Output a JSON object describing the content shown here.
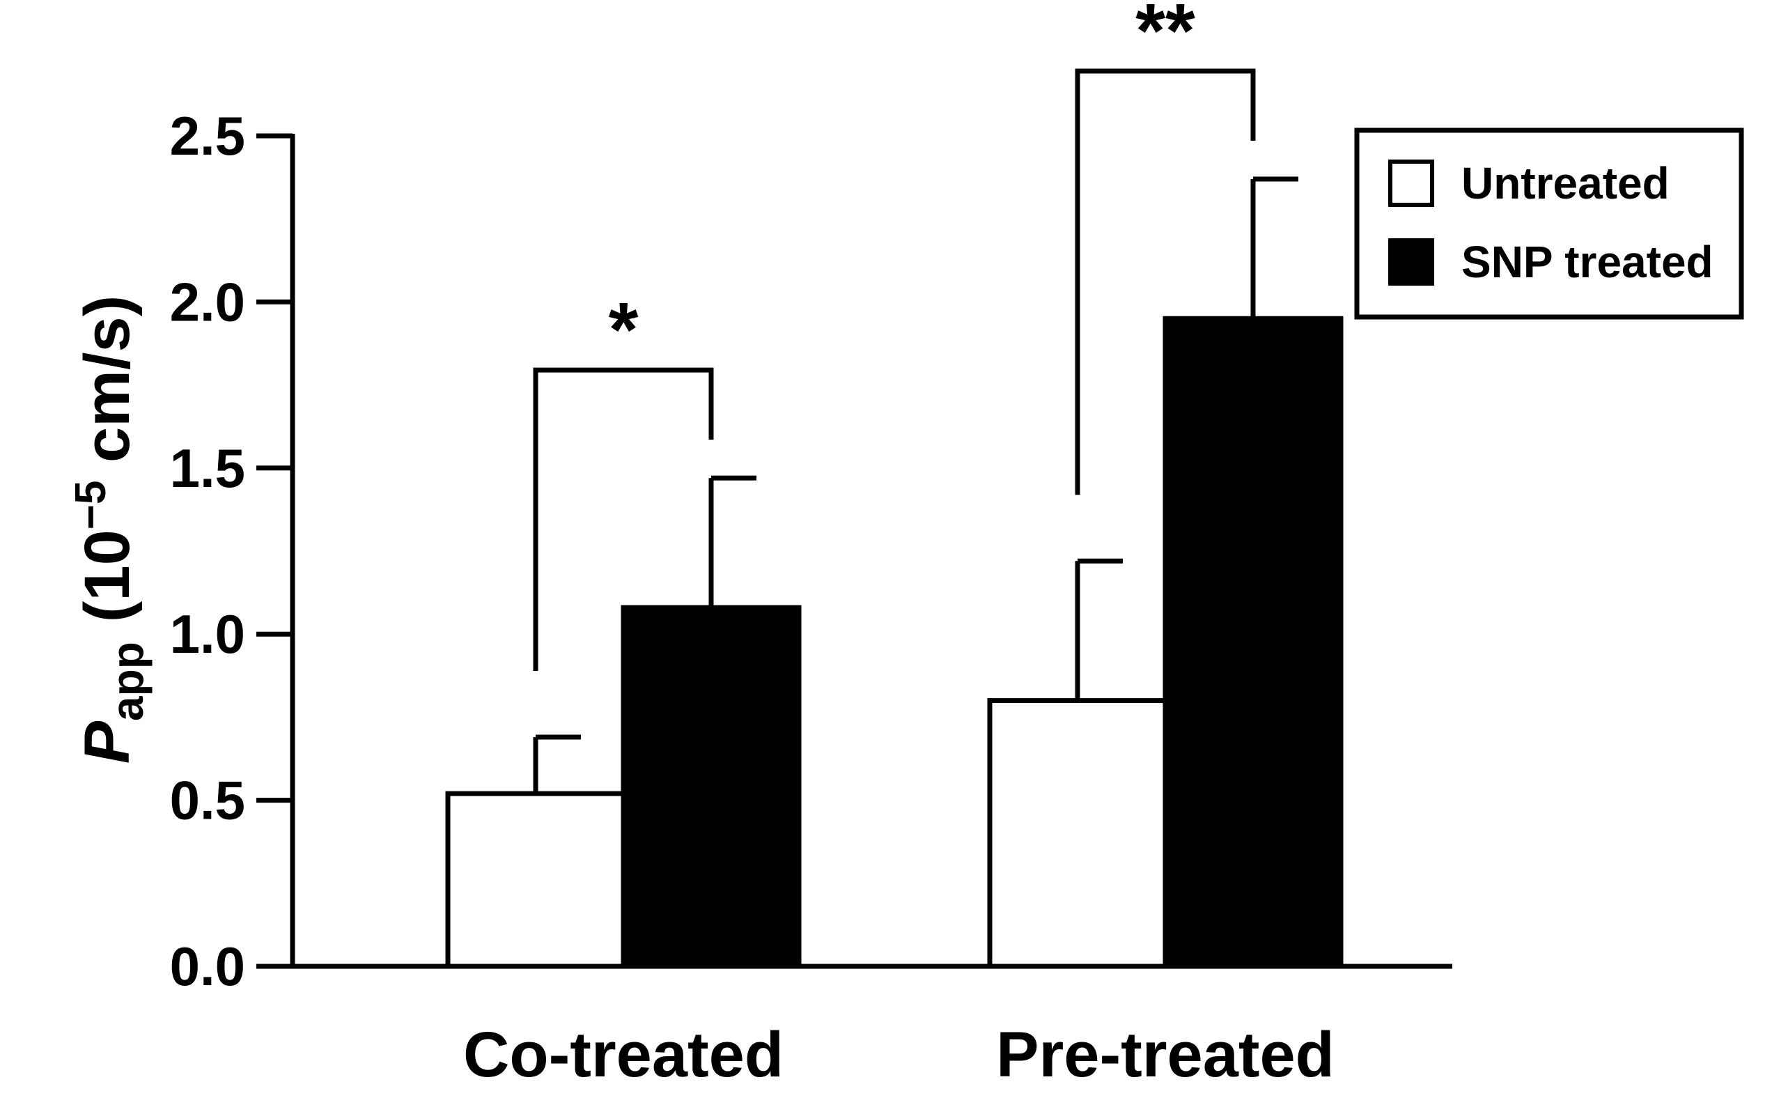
{
  "chart_data": {
    "type": "bar",
    "title": "",
    "xlabel": "",
    "ylabel": {
      "symbol": "P",
      "subscript": "app",
      "unit_prefix": "(10",
      "exponent": "−5",
      "unit_suffix": " cm/s)"
    },
    "categories": [
      "Co-treated",
      "Pre-treated"
    ],
    "series": [
      {
        "name": "Untreated",
        "color": "#ffffff",
        "values": [
          0.52,
          0.8
        ],
        "errors": [
          0.17,
          0.42
        ]
      },
      {
        "name": "SNP treated",
        "color": "#000000",
        "values": [
          1.08,
          1.95
        ],
        "errors": [
          0.39,
          0.42
        ]
      }
    ],
    "ylim": [
      0,
      2.5
    ],
    "yticks": [
      "0.0",
      "0.5",
      "1.0",
      "1.5",
      "2.0",
      "2.5"
    ],
    "grid": false,
    "legend_position": "top-right",
    "significance": [
      {
        "category": "Co-treated",
        "label": "*"
      },
      {
        "category": "Pre-treated",
        "label": "**"
      }
    ]
  }
}
